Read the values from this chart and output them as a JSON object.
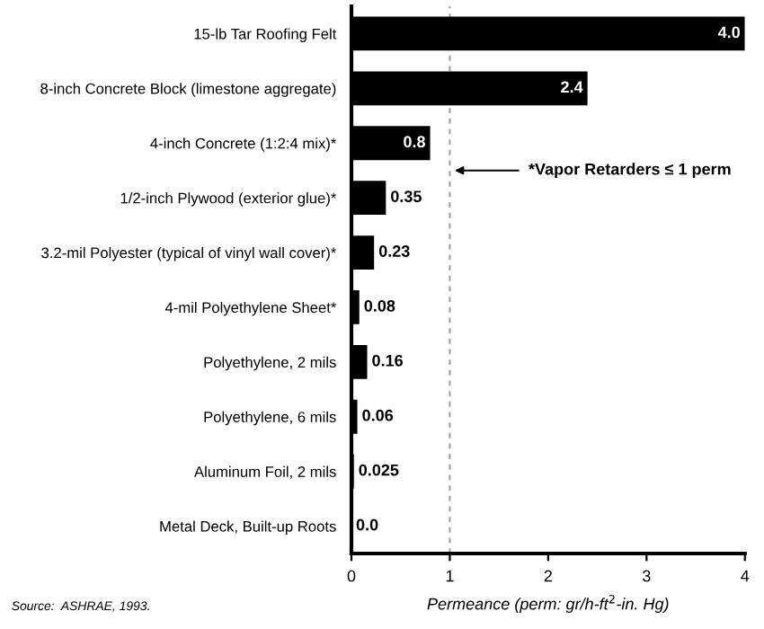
{
  "chart_data": {
    "type": "bar",
    "orientation": "horizontal",
    "categories": [
      "15-lb Tar Roofing Felt",
      "8-inch Concrete Block (limestone aggregate)",
      "4-inch Concrete (1:2:4 mix)*",
      "1/2-inch Plywood (exterior glue)*",
      "3.2-mil Polyester (typical of vinyl wall cover)*",
      "4-mil Polyethylene Sheet*",
      "Polyethylene, 2 mils",
      "Polyethylene, 6 mils",
      "Aluminum Foil, 2 mils",
      "Metal Deck, Built-up Roots"
    ],
    "values": [
      4.0,
      2.4,
      0.8,
      0.35,
      0.23,
      0.08,
      0.16,
      0.06,
      0.025,
      0.0
    ],
    "value_labels": [
      "4.0",
      "2.4",
      "0.8",
      "0.35",
      "0.23",
      "0.08",
      "0.16",
      "0.06",
      "0.025",
      "0.0"
    ],
    "color": "#000000",
    "xlim": [
      0,
      4
    ],
    "xticks": [
      0,
      1,
      2,
      3,
      4
    ],
    "xlabel": "Permeance (perm: gr/h-ft$^{2}$-in. Hg)",
    "ref_lines": [
      {
        "axis": "x",
        "value": 1,
        "label": "*Vapor Retarders ≤ 1 perm",
        "color": "#999999",
        "line_style": "dashed"
      }
    ],
    "annotations": [
      "Source:  ASHRAE, 1993."
    ],
    "grid": false
  }
}
